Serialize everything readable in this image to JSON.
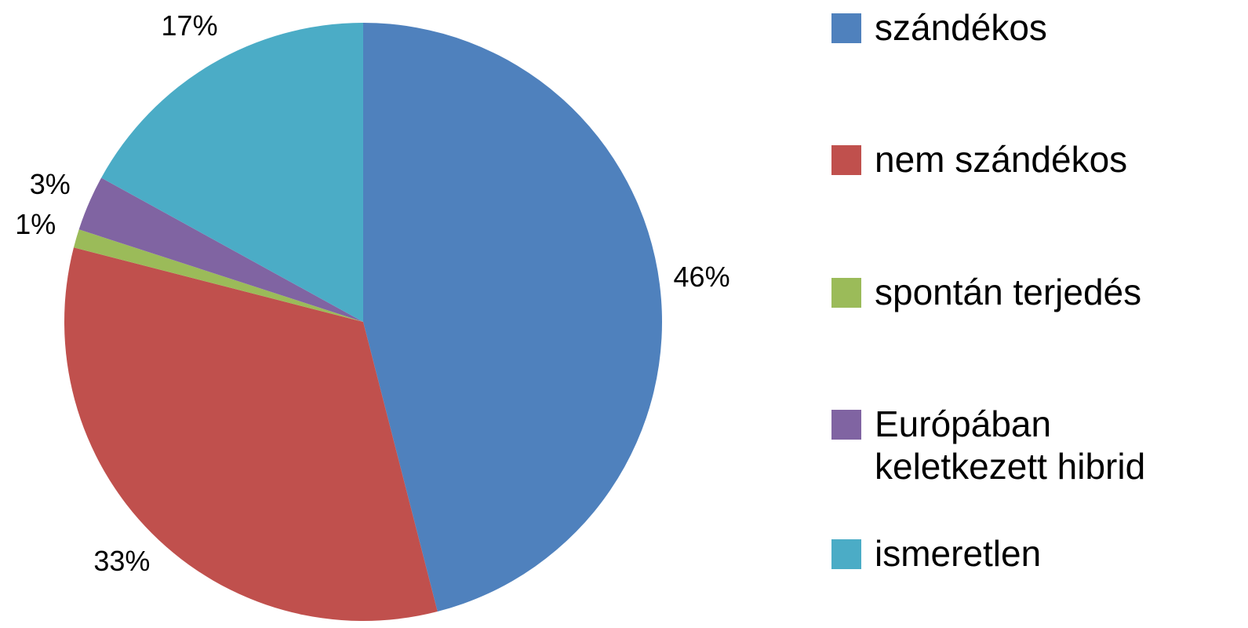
{
  "chart_data": {
    "type": "pie",
    "categories": [
      "szándékos",
      "nem szándékos",
      "spontán terjedés",
      "Európában keletkezett hibrid",
      "ismeretlen"
    ],
    "values": [
      46,
      33,
      1,
      3,
      17
    ],
    "value_labels": [
      "46%",
      "33%",
      "1%",
      "3%",
      "17%"
    ],
    "colors": [
      "#4f81bd",
      "#c0504d",
      "#9bbb59",
      "#8064a2",
      "#4bacc6"
    ],
    "legend": "right"
  }
}
